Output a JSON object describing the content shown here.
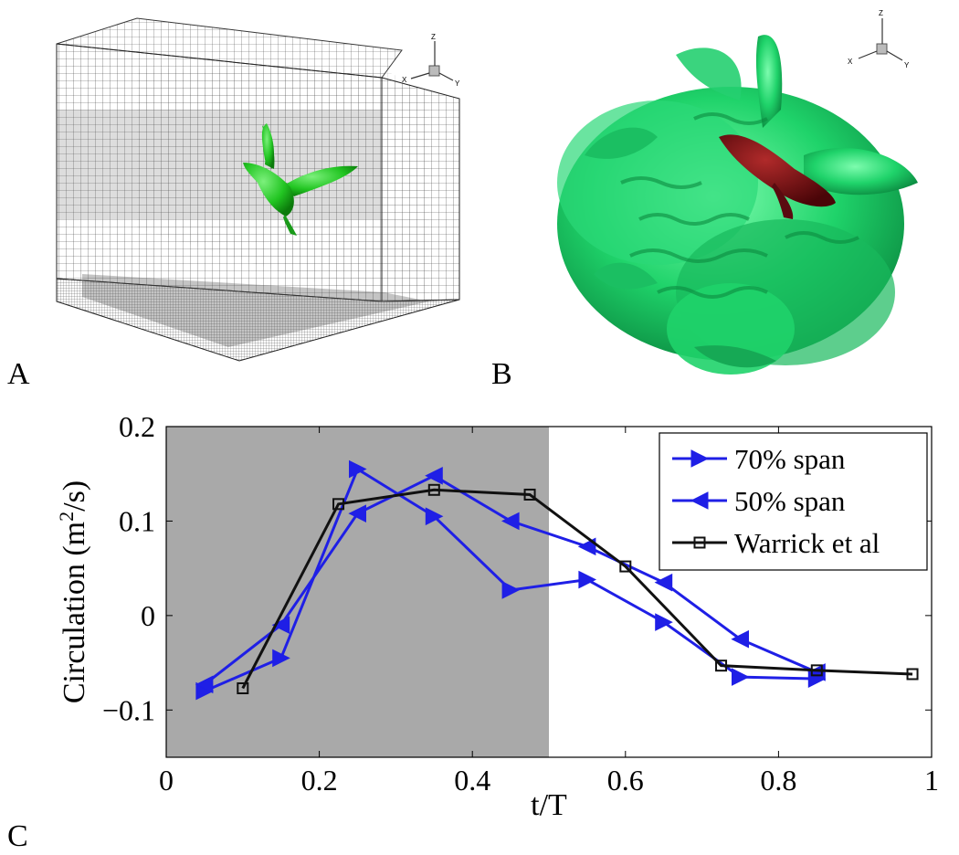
{
  "panels": {
    "a_label": "A",
    "b_label": "B",
    "c_label": "C",
    "a_axis": {
      "z": "Z",
      "x": "X",
      "y": "Y"
    },
    "b_axis": {
      "z": "Z",
      "x": "X",
      "y": "Y"
    }
  },
  "colors": {
    "bird_green": "#22c522",
    "vortex_green": "#1fd36a",
    "bird_body_dark": "#6b0f14",
    "shade": "#a9a9a9",
    "blue_series": "#1f1fe6",
    "black_series": "#111111"
  },
  "chart_data": {
    "type": "line",
    "xlabel": "t/T",
    "ylabel": "Circulation (m",
    "ylabel_sup": "2",
    "ylabel_tail": "/s)",
    "xlim": [
      0,
      1
    ],
    "ylim": [
      -0.15,
      0.2
    ],
    "x_ticks": [
      0,
      0.2,
      0.4,
      0.6,
      0.8,
      1
    ],
    "x_tick_labels": [
      "0",
      "0.2",
      "0.4",
      "0.6",
      "0.8",
      "1"
    ],
    "y_ticks": [
      -0.1,
      0,
      0.1,
      0.2
    ],
    "y_tick_labels": [
      "−0.1",
      "0",
      "0.1",
      "0.2"
    ],
    "shaded_region": {
      "x": [
        0,
        0.5
      ]
    },
    "legend_position": "top-right",
    "series": [
      {
        "name": "70% span",
        "marker": "triangle-right",
        "color": "#1f1fe6",
        "x": [
          0.05,
          0.15,
          0.25,
          0.35,
          0.45,
          0.55,
          0.65,
          0.75,
          0.85
        ],
        "y": [
          -0.08,
          -0.045,
          0.155,
          0.105,
          0.027,
          0.038,
          -0.007,
          -0.065,
          -0.067
        ]
      },
      {
        "name": "50% span",
        "marker": "triangle-left",
        "color": "#1f1fe6",
        "x": [
          0.05,
          0.15,
          0.25,
          0.35,
          0.45,
          0.55,
          0.65,
          0.75,
          0.85
        ],
        "y": [
          -0.073,
          -0.01,
          0.108,
          0.148,
          0.1,
          0.073,
          0.035,
          -0.025,
          -0.06
        ]
      },
      {
        "name": "Warrick et al",
        "marker": "square",
        "color": "#111111",
        "x": [
          0.1,
          0.225,
          0.35,
          0.475,
          0.6,
          0.725,
          0.85,
          0.975
        ],
        "y": [
          -0.077,
          0.118,
          0.133,
          0.128,
          0.052,
          -0.053,
          -0.058,
          -0.062
        ]
      }
    ]
  }
}
